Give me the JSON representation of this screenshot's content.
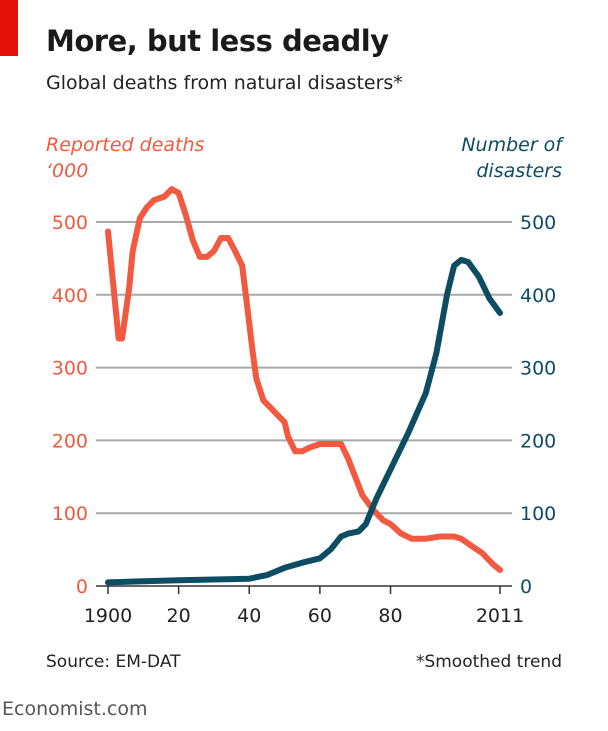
{
  "header": {
    "title": "More, but less deadly",
    "subtitle": "Global deaths from natural disasters*"
  },
  "footer": {
    "source": "Source: EM-DAT",
    "note": "*Smoothed trend",
    "brand": "Economist.com"
  },
  "chart_data": {
    "type": "line",
    "title": "More, but less deadly",
    "subtitle": "Global deaths from natural disasters*",
    "ylabel_left": [
      "Reported deaths",
      "‘000"
    ],
    "ylabel_right": [
      "Number of",
      "disasters"
    ],
    "xlim": [
      1900,
      2011
    ],
    "ylim": [
      0,
      500
    ],
    "x_ticks": [
      "1900",
      "20",
      "40",
      "60",
      "80",
      "2011"
    ],
    "x_tick_values": [
      1900,
      1920,
      1940,
      1960,
      1980,
      2011
    ],
    "y_ticks": [
      "0",
      "100",
      "200",
      "300",
      "400",
      "500"
    ],
    "grid": true,
    "colors": {
      "deaths": "#f15a40",
      "disasters": "#0d4d64"
    },
    "series": [
      {
        "name": "Reported deaths ('000)",
        "axis": "left",
        "color": "#f15a40",
        "x": [
          1900,
          1903,
          1904,
          1906,
          1907,
          1909,
          1911,
          1913,
          1916,
          1918,
          1920,
          1922,
          1924,
          1926,
          1928,
          1930,
          1932,
          1934,
          1936,
          1938,
          1940,
          1941,
          1942,
          1944,
          1946,
          1948,
          1950,
          1951,
          1953,
          1955,
          1957,
          1960,
          1963,
          1966,
          1968,
          1970,
          1972,
          1975,
          1978,
          1980,
          1983,
          1986,
          1990,
          1994,
          1998,
          2000,
          2003,
          2006,
          2009,
          2011
        ],
        "values": [
          487,
          340,
          340,
          410,
          460,
          505,
          520,
          530,
          535,
          545,
          540,
          510,
          475,
          452,
          452,
          460,
          478,
          478,
          460,
          440,
          360,
          320,
          285,
          255,
          245,
          235,
          225,
          205,
          185,
          185,
          190,
          195,
          195,
          195,
          175,
          150,
          125,
          105,
          90,
          85,
          72,
          65,
          65,
          68,
          68,
          65,
          55,
          45,
          30,
          22
        ]
      },
      {
        "name": "Number of disasters",
        "axis": "right",
        "color": "#0d4d64",
        "x": [
          1900,
          1920,
          1940,
          1945,
          1950,
          1955,
          1960,
          1963,
          1966,
          1968,
          1971,
          1973,
          1976,
          1980,
          1985,
          1990,
          1993,
          1996,
          1998,
          2000,
          2002,
          2005,
          2008,
          2011
        ],
        "values": [
          5,
          8,
          10,
          15,
          25,
          32,
          38,
          50,
          68,
          72,
          75,
          85,
          120,
          160,
          210,
          265,
          320,
          400,
          440,
          448,
          445,
          425,
          395,
          375
        ]
      }
    ]
  }
}
